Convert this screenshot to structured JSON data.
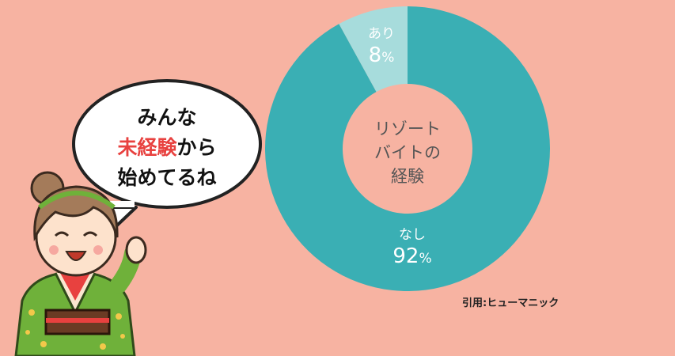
{
  "chart_data": {
    "type": "pie",
    "center_label_lines": [
      "リゾート",
      "バイトの",
      "経験"
    ],
    "slices": [
      {
        "name": "あり",
        "value": 8,
        "color": "#a7dcdc"
      },
      {
        "name": "なし",
        "value": 92,
        "color": "#3aafb4"
      }
    ],
    "unit": "%"
  },
  "source": "引用:ヒューマニック",
  "bubble": {
    "line1": "みんな",
    "line2_red": "未経験",
    "line2_rest": "から",
    "line3": "始めてるね"
  },
  "colors": {
    "background": "#f7b3a2",
    "accent_red": "#e8413f"
  }
}
